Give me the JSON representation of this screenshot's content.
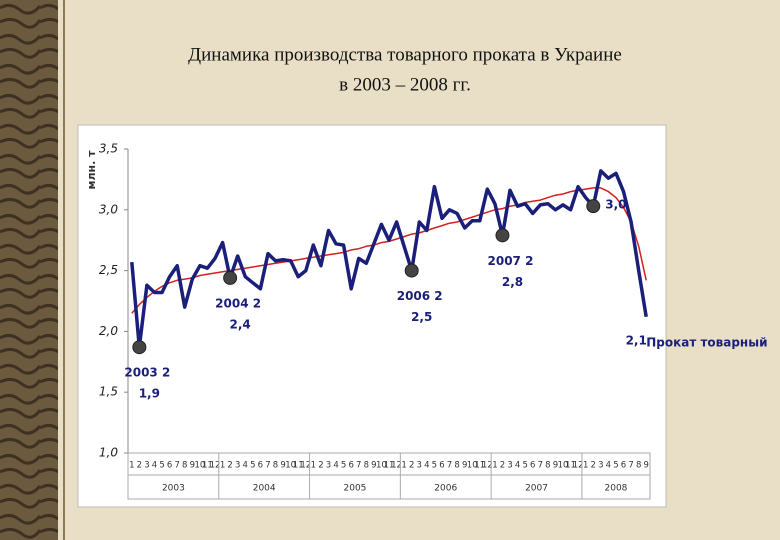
{
  "title": "Динамика производства товарного проката в Украине",
  "subtitle": "в 2003 – 2008 гг.",
  "chart_data": {
    "type": "line",
    "y_label": "млн. т",
    "categories": [
      "1",
      "2",
      "3",
      "4",
      "5",
      "6",
      "7",
      "8",
      "9",
      "10",
      "11",
      "12",
      "1",
      "2",
      "3",
      "4",
      "5",
      "6",
      "7",
      "8",
      "9",
      "10",
      "11",
      "12",
      "1",
      "2",
      "3",
      "4",
      "5",
      "6",
      "7",
      "8",
      "9",
      "10",
      "11",
      "12",
      "1",
      "2",
      "3",
      "4",
      "5",
      "6",
      "7",
      "8",
      "9",
      "10",
      "11",
      "12",
      "1",
      "2",
      "3",
      "4",
      "5",
      "6",
      "7",
      "8",
      "9",
      "10",
      "11",
      "12",
      "1",
      "2",
      "3",
      "4",
      "5",
      "6",
      "7",
      "8",
      "9"
    ],
    "years": [
      "2003",
      "2004",
      "2005",
      "2006",
      "2007",
      "2008"
    ],
    "ylim": [
      1.0,
      3.5
    ],
    "yticks": [
      {
        "value": 1.0,
        "label": "1,0"
      },
      {
        "value": 1.5,
        "label": "1,5"
      },
      {
        "value": 2.0,
        "label": "2,0"
      },
      {
        "value": 2.5,
        "label": "2,5"
      },
      {
        "value": 3.0,
        "label": "3,0"
      },
      {
        "value": 3.5,
        "label": "3,5"
      }
    ],
    "grid": false,
    "series": [
      {
        "name": "Прокат товарный",
        "color": "#1a1f7a",
        "values": [
          2.57,
          1.87,
          2.38,
          2.32,
          2.32,
          2.45,
          2.54,
          2.2,
          2.43,
          2.54,
          2.52,
          2.6,
          2.73,
          2.44,
          2.62,
          2.45,
          2.4,
          2.35,
          2.64,
          2.58,
          2.59,
          2.58,
          2.45,
          2.5,
          2.71,
          2.54,
          2.83,
          2.72,
          2.71,
          2.35,
          2.6,
          2.56,
          2.72,
          2.88,
          2.75,
          2.9,
          2.7,
          2.5,
          2.9,
          2.83,
          3.19,
          2.93,
          3.0,
          2.97,
          2.85,
          2.91,
          2.91,
          3.17,
          3.05,
          2.79,
          3.16,
          3.03,
          3.05,
          2.97,
          3.04,
          3.05,
          3.0,
          3.04,
          3.0,
          3.19,
          3.1,
          3.03,
          3.32,
          3.26,
          3.3,
          3.15,
          2.9,
          2.5,
          2.12
        ],
        "value_labels": [
          null,
          "1,9",
          null,
          null,
          null,
          null,
          null,
          null,
          null,
          null,
          null,
          null,
          null,
          "2,4",
          null,
          null,
          null,
          null,
          null,
          null,
          null,
          null,
          null,
          null,
          null,
          null,
          null,
          null,
          null,
          null,
          null,
          null,
          null,
          null,
          null,
          null,
          null,
          "2,5",
          null,
          null,
          null,
          null,
          null,
          null,
          null,
          null,
          null,
          null,
          null,
          "2,8",
          null,
          null,
          null,
          null,
          null,
          null,
          null,
          null,
          null,
          null,
          null,
          "3,0",
          null,
          null,
          null,
          null,
          null,
          null,
          "2,1"
        ],
        "point_names": [
          null,
          "2003 2",
          null,
          null,
          null,
          null,
          null,
          null,
          null,
          null,
          null,
          null,
          null,
          "2004 2",
          null,
          null,
          null,
          null,
          null,
          null,
          null,
          null,
          null,
          null,
          null,
          null,
          null,
          null,
          null,
          null,
          null,
          null,
          null,
          null,
          null,
          null,
          null,
          "2006 2",
          null,
          null,
          null,
          null,
          null,
          null,
          null,
          null,
          null,
          null,
          null,
          "2007 2",
          null,
          null,
          null,
          null,
          null,
          null,
          null,
          null,
          null,
          null,
          null,
          null,
          null,
          null,
          null,
          null,
          null,
          null,
          null
        ]
      },
      {
        "color": "#d42020",
        "values": [
          2.15,
          2.22,
          2.28,
          2.33,
          2.37,
          2.4,
          2.42,
          2.43,
          2.44,
          2.46,
          2.47,
          2.48,
          2.49,
          2.5,
          2.51,
          2.52,
          2.53,
          2.54,
          2.55,
          2.56,
          2.57,
          2.58,
          2.59,
          2.6,
          2.61,
          2.62,
          2.63,
          2.64,
          2.65,
          2.67,
          2.68,
          2.7,
          2.71,
          2.73,
          2.74,
          2.76,
          2.78,
          2.8,
          2.81,
          2.83,
          2.85,
          2.87,
          2.89,
          2.9,
          2.92,
          2.94,
          2.96,
          2.98,
          3.0,
          3.01,
          3.03,
          3.04,
          3.06,
          3.07,
          3.08,
          3.1,
          3.12,
          3.13,
          3.15,
          3.16,
          3.17,
          3.18,
          3.18,
          3.15,
          3.1,
          3.02,
          2.9,
          2.7,
          2.42
        ]
      }
    ]
  }
}
